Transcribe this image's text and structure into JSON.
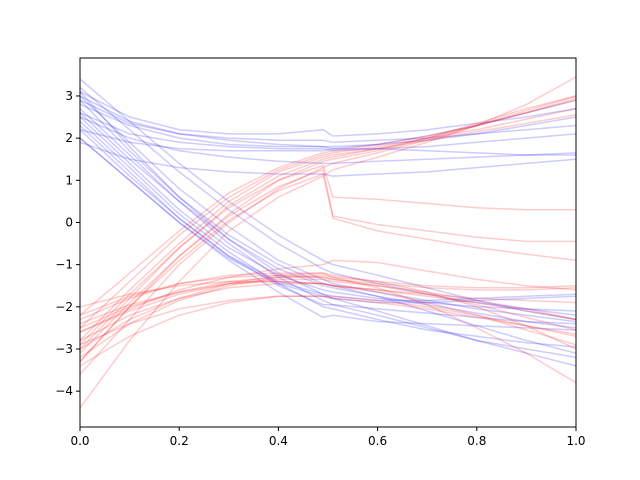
{
  "chart_data": {
    "type": "line",
    "title": "",
    "xlabel": "",
    "ylabel": "",
    "xlim": [
      0,
      1
    ],
    "ylim": [
      -4.85,
      3.9
    ],
    "grid": false,
    "xticks": [
      0.0,
      0.2,
      0.4,
      0.6,
      0.8,
      1.0
    ],
    "xtick_labels": [
      "0.0",
      "0.2",
      "0.4",
      "0.6",
      "0.8",
      "1.0"
    ],
    "yticks": [
      -4,
      -3,
      -2,
      -1,
      0,
      1,
      2,
      3
    ],
    "ytick_labels": [
      "−4",
      "−3",
      "−2",
      "−1",
      "0",
      "1",
      "2",
      "3"
    ],
    "colors": {
      "blue": "#0000ff",
      "red": "#ff0000"
    },
    "line_alpha": 0.2,
    "x": [
      0.0,
      0.1,
      0.2,
      0.3,
      0.4,
      0.49,
      0.51,
      0.6,
      0.7,
      0.8,
      0.9,
      1.0
    ],
    "series": [
      {
        "color": "blue",
        "values": [
          3.0,
          2.4,
          2.1,
          1.95,
          1.85,
          1.8,
          1.75,
          1.75,
          1.7,
          1.65,
          1.6,
          1.6
        ]
      },
      {
        "color": "blue",
        "values": [
          2.9,
          2.35,
          2.1,
          2.0,
          1.95,
          1.95,
          1.9,
          1.95,
          2.0,
          2.1,
          2.2,
          2.3
        ]
      },
      {
        "color": "blue",
        "values": [
          3.1,
          2.5,
          2.2,
          2.1,
          2.1,
          2.2,
          2.05,
          2.1,
          2.2,
          2.35,
          2.5,
          2.7
        ]
      },
      {
        "color": "blue",
        "values": [
          2.6,
          2.1,
          1.9,
          1.8,
          1.75,
          1.75,
          1.7,
          1.75,
          1.8,
          1.9,
          2.0,
          2.1
        ]
      },
      {
        "color": "blue",
        "values": [
          2.2,
          1.9,
          1.75,
          1.7,
          1.7,
          1.7,
          1.75,
          1.85,
          2.05,
          2.3,
          2.6,
          2.9
        ]
      },
      {
        "color": "blue",
        "values": [
          2.5,
          2.0,
          1.7,
          1.55,
          1.45,
          1.4,
          1.4,
          1.45,
          1.5,
          1.55,
          1.6,
          1.65
        ]
      },
      {
        "color": "blue",
        "values": [
          1.9,
          1.5,
          1.3,
          1.2,
          1.15,
          1.15,
          1.1,
          1.15,
          1.2,
          1.3,
          1.4,
          1.5
        ]
      },
      {
        "color": "blue",
        "values": [
          2.8,
          2.3,
          2.0,
          1.85,
          1.8,
          1.8,
          1.8,
          1.85,
          1.95,
          2.1,
          2.3,
          2.5
        ]
      },
      {
        "color": "blue",
        "values": [
          3.4,
          2.4,
          1.4,
          0.5,
          -0.3,
          -0.9,
          -1.0,
          -1.25,
          -1.55,
          -1.85,
          -2.1,
          -2.3
        ]
      },
      {
        "color": "blue",
        "values": [
          3.2,
          2.2,
          1.2,
          0.3,
          -0.5,
          -1.1,
          -1.2,
          -1.45,
          -1.7,
          -1.9,
          -2.05,
          -2.2
        ]
      },
      {
        "color": "blue",
        "values": [
          3.0,
          1.9,
          0.8,
          -0.1,
          -0.9,
          -1.35,
          -1.45,
          -1.65,
          -1.85,
          -2.05,
          -2.2,
          -2.35
        ]
      },
      {
        "color": "blue",
        "values": [
          2.7,
          1.6,
          0.5,
          -0.4,
          -1.1,
          -1.5,
          -1.55,
          -1.75,
          -1.95,
          -2.15,
          -2.35,
          -2.5
        ]
      },
      {
        "color": "blue",
        "values": [
          2.5,
          1.4,
          0.3,
          -0.6,
          -1.25,
          -1.6,
          -1.65,
          -1.8,
          -1.9,
          -2.0,
          -2.05,
          -2.1
        ]
      },
      {
        "color": "blue",
        "values": [
          2.2,
          1.1,
          0.1,
          -0.8,
          -1.4,
          -1.7,
          -1.75,
          -1.85,
          -1.85,
          -1.8,
          -1.75,
          -1.7
        ]
      },
      {
        "color": "blue",
        "values": [
          2.0,
          1.0,
          0.0,
          -0.85,
          -1.45,
          -1.75,
          -1.8,
          -1.9,
          -1.9,
          -1.85,
          -1.8,
          -1.75
        ]
      },
      {
        "color": "blue",
        "values": [
          2.9,
          1.7,
          0.6,
          -0.3,
          -1.0,
          -1.45,
          -1.5,
          -1.75,
          -2.1,
          -2.45,
          -2.8,
          -3.1
        ]
      },
      {
        "color": "blue",
        "values": [
          3.1,
          1.8,
          0.6,
          -0.4,
          -1.2,
          -1.7,
          -1.8,
          -2.1,
          -2.45,
          -2.8,
          -3.1,
          -3.4
        ]
      },
      {
        "color": "blue",
        "values": [
          2.6,
          1.5,
          0.5,
          -0.5,
          -1.3,
          -1.85,
          -1.95,
          -2.2,
          -2.5,
          -2.8,
          -3.0,
          -3.2
        ]
      },
      {
        "color": "blue",
        "values": [
          2.4,
          1.3,
          0.2,
          -0.7,
          -1.45,
          -2.0,
          -2.05,
          -2.3,
          -2.55,
          -2.7,
          -2.85,
          -2.95
        ]
      },
      {
        "color": "blue",
        "values": [
          2.0,
          1.0,
          0.0,
          -0.9,
          -1.65,
          -2.25,
          -2.2,
          -2.35,
          -2.4,
          -2.45,
          -2.5,
          -2.55
        ]
      },
      {
        "color": "blue",
        "values": [
          2.3,
          1.2,
          0.1,
          -0.8,
          -1.5,
          -1.95,
          -1.95,
          -2.05,
          -2.15,
          -2.25,
          -2.35,
          -2.4
        ]
      },
      {
        "color": "red",
        "values": [
          -4.4,
          -2.8,
          -1.4,
          -0.2,
          0.6,
          1.1,
          1.25,
          1.55,
          1.9,
          2.3,
          2.8,
          3.45
        ]
      },
      {
        "color": "red",
        "values": [
          -3.3,
          -2.0,
          -0.8,
          0.2,
          1.0,
          1.45,
          1.5,
          1.7,
          2.0,
          2.35,
          2.7,
          3.0
        ]
      },
      {
        "color": "red",
        "values": [
          -3.0,
          -1.8,
          -0.6,
          0.4,
          1.1,
          1.5,
          1.55,
          1.75,
          2.0,
          2.3,
          2.6,
          2.9
        ]
      },
      {
        "color": "red",
        "values": [
          -2.8,
          -1.6,
          -0.5,
          0.5,
          1.2,
          1.55,
          1.6,
          1.75,
          1.95,
          2.15,
          2.35,
          2.55
        ]
      },
      {
        "color": "red",
        "values": [
          -2.5,
          -1.4,
          -0.3,
          0.6,
          1.25,
          1.6,
          1.65,
          1.8,
          2.0,
          2.2,
          2.45,
          2.7
        ]
      },
      {
        "color": "red",
        "values": [
          -2.2,
          -1.2,
          -0.2,
          0.7,
          1.3,
          1.65,
          1.7,
          1.85,
          2.05,
          2.3,
          2.6,
          2.95
        ]
      },
      {
        "color": "red",
        "values": [
          -3.6,
          -2.3,
          -1.0,
          0.0,
          0.8,
          1.3,
          1.4,
          1.65,
          1.95,
          2.3,
          2.65,
          3.0
        ]
      },
      {
        "color": "red",
        "values": [
          -2.9,
          -1.7,
          -0.6,
          0.35,
          1.0,
          1.35,
          0.6,
          0.55,
          0.45,
          0.35,
          0.3,
          0.3
        ]
      },
      {
        "color": "red",
        "values": [
          -3.1,
          -1.9,
          -0.8,
          0.15,
          0.85,
          1.25,
          0.15,
          -0.05,
          -0.2,
          -0.35,
          -0.45,
          -0.45
        ]
      },
      {
        "color": "red",
        "values": [
          -3.3,
          -2.0,
          -0.9,
          0.05,
          0.75,
          1.15,
          0.1,
          -0.2,
          -0.4,
          -0.6,
          -0.75,
          -0.9
        ]
      },
      {
        "color": "red",
        "values": [
          -2.4,
          -1.95,
          -1.65,
          -1.45,
          -1.4,
          -1.45,
          -1.5,
          -1.6,
          -1.7,
          -1.8,
          -1.85,
          -1.9
        ]
      },
      {
        "color": "red",
        "values": [
          -2.6,
          -2.1,
          -1.7,
          -1.45,
          -1.35,
          -1.35,
          -1.4,
          -1.5,
          -1.65,
          -1.85,
          -2.05,
          -2.3
        ]
      },
      {
        "color": "red",
        "values": [
          -2.3,
          -1.8,
          -1.45,
          -1.25,
          -1.2,
          -1.2,
          -1.25,
          -1.4,
          -1.65,
          -2.0,
          -2.45,
          -3.0
        ]
      },
      {
        "color": "red",
        "values": [
          -3.0,
          -2.3,
          -1.8,
          -1.45,
          -1.25,
          -1.2,
          -1.3,
          -1.55,
          -1.95,
          -2.5,
          -3.1,
          -3.8
        ]
      },
      {
        "color": "red",
        "values": [
          -2.8,
          -2.2,
          -1.8,
          -1.55,
          -1.45,
          -1.45,
          -1.5,
          -1.65,
          -1.9,
          -2.2,
          -2.55,
          -2.9
        ]
      },
      {
        "color": "red",
        "values": [
          -2.2,
          -1.75,
          -1.45,
          -1.3,
          -1.25,
          -1.3,
          -1.35,
          -1.5,
          -1.7,
          -1.95,
          -2.25,
          -2.55
        ]
      },
      {
        "color": "red",
        "values": [
          -3.4,
          -2.7,
          -2.2,
          -1.9,
          -1.75,
          -1.75,
          -1.8,
          -1.9,
          -2.05,
          -2.25,
          -2.45,
          -2.65
        ]
      },
      {
        "color": "red",
        "values": [
          -2.5,
          -2.0,
          -1.65,
          -1.4,
          -1.3,
          -1.3,
          -1.35,
          -1.45,
          -1.55,
          -1.6,
          -1.6,
          -1.55
        ]
      },
      {
        "color": "red",
        "values": [
          -3.2,
          -2.4,
          -1.85,
          -1.5,
          -1.3,
          -1.25,
          -1.3,
          -1.4,
          -1.5,
          -1.55,
          -1.55,
          -1.5
        ]
      },
      {
        "color": "red",
        "values": [
          -2.6,
          -2.05,
          -1.6,
          -1.3,
          -1.1,
          -1.0,
          -0.9,
          -0.95,
          -1.15,
          -1.35,
          -1.5,
          -1.6
        ]
      },
      {
        "color": "red",
        "values": [
          -2.0,
          -1.7,
          -1.5,
          -1.4,
          -1.4,
          -1.45,
          -1.5,
          -1.6,
          -1.75,
          -1.9,
          -2.1,
          -2.3
        ]
      },
      {
        "color": "red",
        "values": [
          -2.9,
          -2.4,
          -2.05,
          -1.85,
          -1.75,
          -1.75,
          -1.75,
          -1.85,
          -2.0,
          -2.2,
          -2.45,
          -2.7
        ]
      }
    ]
  }
}
